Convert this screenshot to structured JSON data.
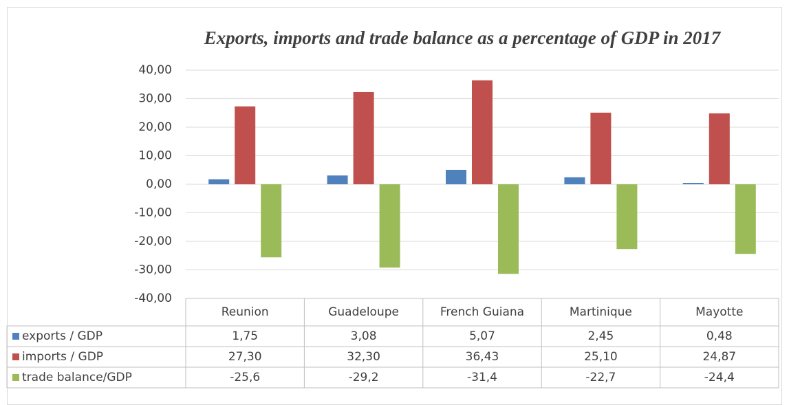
{
  "chart_data": {
    "type": "bar",
    "title": "Exports, imports and trade balance as a percentage of GDP in 2017",
    "categories": [
      "Reunion",
      "Guadeloupe",
      "French Guiana",
      "Martinique",
      "Mayotte"
    ],
    "series": [
      {
        "name": "exports / GDP",
        "color": "#4f81bd",
        "values": [
          1.75,
          3.08,
          5.07,
          2.45,
          0.48
        ],
        "value_labels": [
          "1,75",
          "3,08",
          "5,07",
          "2,45",
          "0,48"
        ]
      },
      {
        "name": "imports / GDP",
        "color": "#c0504d",
        "values": [
          27.3,
          32.3,
          36.43,
          25.1,
          24.87
        ],
        "value_labels": [
          "27,30",
          "32,30",
          "36,43",
          "25,10",
          "24,87"
        ]
      },
      {
        "name": "trade balance/GDP",
        "color": "#9bbb59",
        "values": [
          -25.6,
          -29.2,
          -31.4,
          -22.7,
          -24.4
        ],
        "value_labels": [
          "-25,6",
          "-29,2",
          "-31,4",
          "-22,7",
          "-24,4"
        ]
      }
    ],
    "ylim": [
      -40,
      40
    ],
    "yticks": [
      {
        "value": -40,
        "label": "-40,00"
      },
      {
        "value": -30,
        "label": "-30,00"
      },
      {
        "value": -20,
        "label": "-20,00"
      },
      {
        "value": -10,
        "label": "-10,00"
      },
      {
        "value": 0,
        "label": "0,00"
      },
      {
        "value": 10,
        "label": "10,00"
      },
      {
        "value": 20,
        "label": "20,00"
      },
      {
        "value": 30,
        "label": "30,00"
      },
      {
        "value": 40,
        "label": "40,00"
      }
    ],
    "grid": true
  }
}
